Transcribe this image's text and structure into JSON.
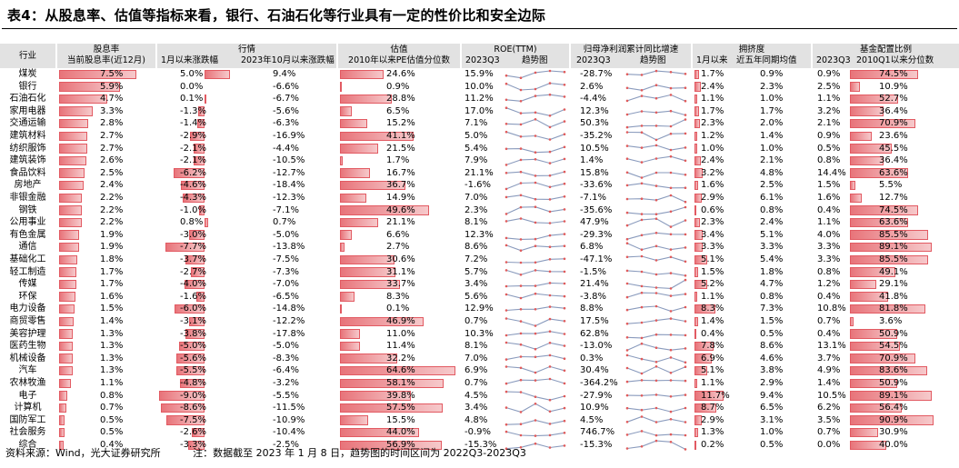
{
  "title": "表4：从股息率、估值等指标来看，银行、石油石化等行业具有一定的性价比和安全边际",
  "headers": {
    "industry": "行业",
    "dividend": {
      "top": "股息率",
      "sub": "当前股息率(近12月)"
    },
    "market": {
      "top": "行情",
      "sub1": "1月以来涨跌幅",
      "sub2": "2023年10月以来涨跌幅"
    },
    "valuation": {
      "top": "估值",
      "sub": "2010年以来PE估值分位数"
    },
    "roe": {
      "top": "ROE(TTM)",
      "sub1": "2023Q3",
      "sub2": "趋势图"
    },
    "profit": {
      "top": "归母净利润累计同比增速",
      "sub1": "2023Q3",
      "sub2": "趋势图"
    },
    "crowd": {
      "top": "拥挤度",
      "sub1": "1月以来",
      "sub2": "近五年同期均值"
    },
    "fund": {
      "top": "基金配置比例",
      "sub1": "2023Q3",
      "sub2": "2010Q1以来分位数"
    }
  },
  "rows": [
    {
      "name": "煤炭",
      "div": "7.5%",
      "jan": "5.0%",
      "oct": "9.4%",
      "pe": "24.6%",
      "roe": "15.9%",
      "profit": "-28.7%",
      "crowd": "1.7%",
      "crowdAvg": "0.9%",
      "fund": "0.9%",
      "fundPct": "74.5%"
    },
    {
      "name": "银行",
      "div": "5.9%",
      "jan": "0.0%",
      "oct": "-6.6%",
      "pe": "0.9%",
      "roe": "10.0%",
      "profit": "2.6%",
      "crowd": "2.4%",
      "crowdAvg": "2.3%",
      "fund": "2.5%",
      "fundPct": "10.9%"
    },
    {
      "name": "石油石化",
      "div": "4.7%",
      "jan": "0.1%",
      "oct": "-6.7%",
      "pe": "28.8%",
      "roe": "11.2%",
      "profit": "-4.4%",
      "crowd": "1.1%",
      "crowdAvg": "1.0%",
      "fund": "1.1%",
      "fundPct": "52.7%"
    },
    {
      "name": "家用电器",
      "div": "3.3%",
      "jan": "-1.3%",
      "oct": "-5.6%",
      "pe": "6.5%",
      "roe": "17.0%",
      "profit": "12.3%",
      "crowd": "1.7%",
      "crowdAvg": "1.7%",
      "fund": "3.2%",
      "fundPct": "36.4%"
    },
    {
      "name": "交通运输",
      "div": "2.8%",
      "jan": "-1.4%",
      "oct": "-6.3%",
      "pe": "15.2%",
      "roe": "7.1%",
      "profit": "50.3%",
      "crowd": "2.3%",
      "crowdAvg": "2.0%",
      "fund": "2.1%",
      "fundPct": "70.9%"
    },
    {
      "name": "建筑材料",
      "div": "2.7%",
      "jan": "-2.9%",
      "oct": "-16.9%",
      "pe": "41.1%",
      "roe": "5.0%",
      "profit": "-35.2%",
      "crowd": "1.2%",
      "crowdAvg": "1.4%",
      "fund": "0.9%",
      "fundPct": "23.6%"
    },
    {
      "name": "纺织服饰",
      "div": "2.7%",
      "jan": "-2.1%",
      "oct": "-4.4%",
      "pe": "21.5%",
      "roe": "5.4%",
      "profit": "10.5%",
      "crowd": "1.0%",
      "crowdAvg": "1.0%",
      "fund": "0.5%",
      "fundPct": "45.5%"
    },
    {
      "name": "建筑装饰",
      "div": "2.6%",
      "jan": "-2.1%",
      "oct": "-10.5%",
      "pe": "1.7%",
      "roe": "7.9%",
      "profit": "1.4%",
      "crowd": "2.4%",
      "crowdAvg": "2.1%",
      "fund": "0.8%",
      "fundPct": "36.4%"
    },
    {
      "name": "食品饮料",
      "div": "2.5%",
      "jan": "-6.2%",
      "oct": "-12.7%",
      "pe": "16.7%",
      "roe": "21.1%",
      "profit": "15.8%",
      "crowd": "3.2%",
      "crowdAvg": "4.8%",
      "fund": "14.4%",
      "fundPct": "63.6%"
    },
    {
      "name": "房地产",
      "div": "2.4%",
      "jan": "-4.6%",
      "oct": "-18.4%",
      "pe": "36.7%",
      "roe": "-1.6%",
      "profit": "-33.6%",
      "crowd": "1.6%",
      "crowdAvg": "2.5%",
      "fund": "1.5%",
      "fundPct": "5.5%"
    },
    {
      "name": "非银金融",
      "div": "2.2%",
      "jan": "-4.3%",
      "oct": "-12.3%",
      "pe": "14.9%",
      "roe": "7.0%",
      "profit": "-7.1%",
      "crowd": "2.9%",
      "crowdAvg": "6.1%",
      "fund": "1.6%",
      "fundPct": "12.7%"
    },
    {
      "name": "钢铁",
      "div": "2.2%",
      "jan": "-1.0%",
      "oct": "-7.1%",
      "pe": "49.6%",
      "roe": "2.3%",
      "profit": "-35.6%",
      "crowd": "0.6%",
      "crowdAvg": "0.8%",
      "fund": "0.4%",
      "fundPct": "74.5%"
    },
    {
      "name": "公用事业",
      "div": "2.2%",
      "jan": "0.8%",
      "oct": "0.7%",
      "pe": "21.1%",
      "roe": "8.1%",
      "profit": "47.9%",
      "crowd": "2.3%",
      "crowdAvg": "2.4%",
      "fund": "1.1%",
      "fundPct": "63.6%"
    },
    {
      "name": "有色金属",
      "div": "1.9%",
      "jan": "-3.0%",
      "oct": "-5.0%",
      "pe": "6.6%",
      "roe": "12.3%",
      "profit": "-29.3%",
      "crowd": "3.4%",
      "crowdAvg": "5.1%",
      "fund": "4.0%",
      "fundPct": "85.5%"
    },
    {
      "name": "通信",
      "div": "1.9%",
      "jan": "-7.7%",
      "oct": "-13.8%",
      "pe": "2.7%",
      "roe": "8.6%",
      "profit": "6.8%",
      "crowd": "3.3%",
      "crowdAvg": "3.3%",
      "fund": "3.3%",
      "fundPct": "89.1%"
    },
    {
      "name": "基础化工",
      "div": "1.8%",
      "jan": "-3.7%",
      "oct": "-7.5%",
      "pe": "30.6%",
      "roe": "7.2%",
      "profit": "-47.1%",
      "crowd": "5.1%",
      "crowdAvg": "5.4%",
      "fund": "3.3%",
      "fundPct": "85.5%"
    },
    {
      "name": "轻工制造",
      "div": "1.7%",
      "jan": "-2.7%",
      "oct": "-7.3%",
      "pe": "31.1%",
      "roe": "5.7%",
      "profit": "-1.5%",
      "crowd": "1.5%",
      "crowdAvg": "1.8%",
      "fund": "0.8%",
      "fundPct": "49.1%"
    },
    {
      "name": "传媒",
      "div": "1.7%",
      "jan": "-4.0%",
      "oct": "-7.0%",
      "pe": "33.7%",
      "roe": "3.4%",
      "profit": "21.4%",
      "crowd": "5.2%",
      "crowdAvg": "4.7%",
      "fund": "1.2%",
      "fundPct": "29.1%"
    },
    {
      "name": "环保",
      "div": "1.6%",
      "jan": "-1.6%",
      "oct": "-6.5%",
      "pe": "8.3%",
      "roe": "5.6%",
      "profit": "-3.8%",
      "crowd": "1.1%",
      "crowdAvg": "0.8%",
      "fund": "0.4%",
      "fundPct": "41.8%"
    },
    {
      "name": "电力设备",
      "div": "1.5%",
      "jan": "-6.0%",
      "oct": "-14.8%",
      "pe": "0.1%",
      "roe": "12.9%",
      "profit": "8.8%",
      "crowd": "8.3%",
      "crowdAvg": "7.3%",
      "fund": "10.8%",
      "fundPct": "81.8%"
    },
    {
      "name": "商贸零售",
      "div": "1.4%",
      "jan": "-3.1%",
      "oct": "-12.2%",
      "pe": "46.9%",
      "roe": "0.7%",
      "profit": "17.5%",
      "crowd": "1.4%",
      "crowdAvg": "1.5%",
      "fund": "0.7%",
      "fundPct": "3.6%"
    },
    {
      "name": "美容护理",
      "div": "1.3%",
      "jan": "-3.8%",
      "oct": "-17.8%",
      "pe": "11.0%",
      "roe": "10.3%",
      "profit": "62.8%",
      "crowd": "0.4%",
      "crowdAvg": "0.5%",
      "fund": "0.4%",
      "fundPct": "50.9%"
    },
    {
      "name": "医药生物",
      "div": "1.3%",
      "jan": "-5.0%",
      "oct": "-5.0%",
      "pe": "11.4%",
      "roe": "8.1%",
      "profit": "-13.0%",
      "crowd": "7.8%",
      "crowdAvg": "8.6%",
      "fund": "13.1%",
      "fundPct": "54.5%"
    },
    {
      "name": "机械设备",
      "div": "1.3%",
      "jan": "-5.6%",
      "oct": "-8.3%",
      "pe": "32.2%",
      "roe": "7.0%",
      "profit": "0.3%",
      "crowd": "6.9%",
      "crowdAvg": "4.6%",
      "fund": "3.7%",
      "fundPct": "70.9%"
    },
    {
      "name": "汽车",
      "div": "1.3%",
      "jan": "-5.5%",
      "oct": "-6.4%",
      "pe": "64.6%",
      "roe": "6.9%",
      "profit": "30.4%",
      "crowd": "5.1%",
      "crowdAvg": "3.8%",
      "fund": "4.9%",
      "fundPct": "83.6%"
    },
    {
      "name": "农林牧渔",
      "div": "1.1%",
      "jan": "-4.8%",
      "oct": "-3.2%",
      "pe": "58.1%",
      "roe": "0.7%",
      "profit": "-364.2%",
      "crowd": "1.1%",
      "crowdAvg": "2.9%",
      "fund": "1.4%",
      "fundPct": "50.9%"
    },
    {
      "name": "电子",
      "div": "0.8%",
      "jan": "-9.0%",
      "oct": "-5.5%",
      "pe": "39.8%",
      "roe": "4.5%",
      "profit": "-27.9%",
      "crowd": "11.7%",
      "crowdAvg": "9.4%",
      "fund": "10.5%",
      "fundPct": "89.1%"
    },
    {
      "name": "计算机",
      "div": "0.7%",
      "jan": "-8.6%",
      "oct": "-11.5%",
      "pe": "57.5%",
      "roe": "3.4%",
      "profit": "10.9%",
      "crowd": "8.7%",
      "crowdAvg": "6.5%",
      "fund": "6.2%",
      "fundPct": "56.4%"
    },
    {
      "name": "国防军工",
      "div": "0.5%",
      "jan": "-7.5%",
      "oct": "-10.9%",
      "pe": "15.5%",
      "roe": "4.8%",
      "profit": "4.5%",
      "crowd": "2.9%",
      "crowdAvg": "3.1%",
      "fund": "3.5%",
      "fundPct": "90.9%"
    },
    {
      "name": "社会服务",
      "div": "0.5%",
      "jan": "-2.6%",
      "oct": "-10.4%",
      "pe": "44.0%",
      "roe": "-0.9%",
      "profit": "746.7%",
      "crowd": "1.3%",
      "crowdAvg": "1.0%",
      "fund": "0.7%",
      "fundPct": "30.9%"
    },
    {
      "name": "综合",
      "div": "0.4%",
      "jan": "-3.3%",
      "oct": "-2.5%",
      "pe": "56.9%",
      "roe": "-15.3%",
      "profit": "-15.3%",
      "crowd": "0.2%",
      "crowdAvg": "0.5%",
      "fund": "0.0%",
      "fundPct": "40.0%"
    }
  ],
  "footer": {
    "source": "资料来源：Wind，光大证券研究所",
    "note": "注：数据截至 2023 年 1 月 8 日，趋势图的时间区间为 2022Q3-2023Q3"
  }
}
